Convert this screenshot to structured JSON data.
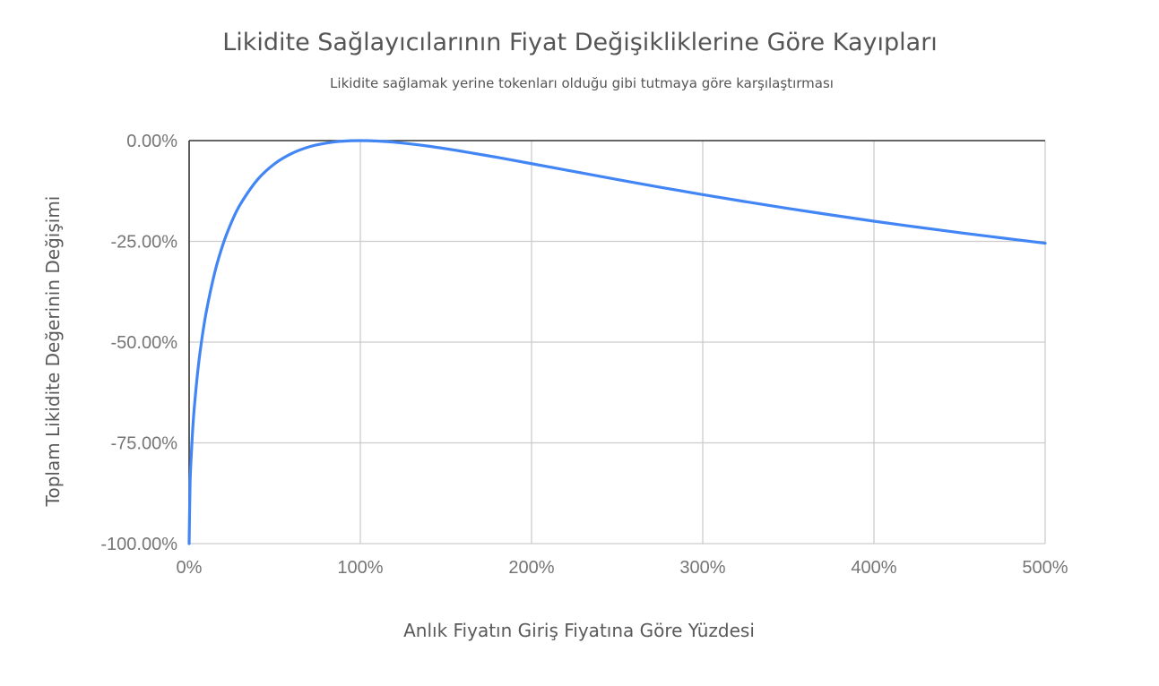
{
  "chart_data": {
    "type": "line",
    "title": "Likidite Sağlayıcılarının Fiyat Değişikliklerine Göre Kayıpları",
    "subtitle": "Likidite sağlamak yerine tokenları olduğu gibi tutmaya göre karşılaştırması",
    "xlabel": "Anlık Fiyatın Giriş Fiyatına Göre Yüzdesi",
    "ylabel": "Toplam Likidite Değerinin Değişimi",
    "xlim": [
      0,
      500
    ],
    "ylim": [
      -100,
      0
    ],
    "x_ticks": [
      {
        "value": 0,
        "label": "0%"
      },
      {
        "value": 100,
        "label": "100%"
      },
      {
        "value": 200,
        "label": "200%"
      },
      {
        "value": 300,
        "label": "300%"
      },
      {
        "value": 400,
        "label": "400%"
      },
      {
        "value": 500,
        "label": "500%"
      }
    ],
    "y_ticks": [
      {
        "value": 0,
        "label": "0.00%"
      },
      {
        "value": -25,
        "label": "-25.00%"
      },
      {
        "value": -50,
        "label": "-50.00%"
      },
      {
        "value": -75,
        "label": "-75.00%"
      },
      {
        "value": -100,
        "label": "-100.00%"
      }
    ],
    "grid": true,
    "legend": "none",
    "colors": {
      "series": "#4285f4",
      "grid": "#cccccc",
      "axis": "#333333"
    },
    "series": [
      {
        "x": [
          0,
          0.5,
          1,
          2,
          3,
          5,
          7,
          10,
          15,
          20,
          25,
          30,
          40,
          50,
          60,
          70,
          80,
          90,
          100,
          110,
          120,
          140,
          160,
          180,
          200,
          225,
          250,
          275,
          300,
          325,
          350,
          375,
          400,
          425,
          450,
          475,
          500
        ],
        "values": [
          -100,
          -85.93,
          -80.2,
          -72.27,
          -66.3,
          -57.41,
          -50.54,
          -42.51,
          -32.67,
          -25.46,
          -20,
          -15.73,
          -9.65,
          -5.72,
          -3.18,
          -1.55,
          -0.62,
          -0.14,
          0,
          -0.11,
          -0.41,
          -1.39,
          -2.7,
          -4.16,
          -5.72,
          -7.69,
          -9.65,
          -11.56,
          -13.4,
          -15.16,
          -16.84,
          -18.44,
          -20,
          -21.45,
          -22.84,
          -24.17,
          -25.46
        ]
      }
    ]
  }
}
